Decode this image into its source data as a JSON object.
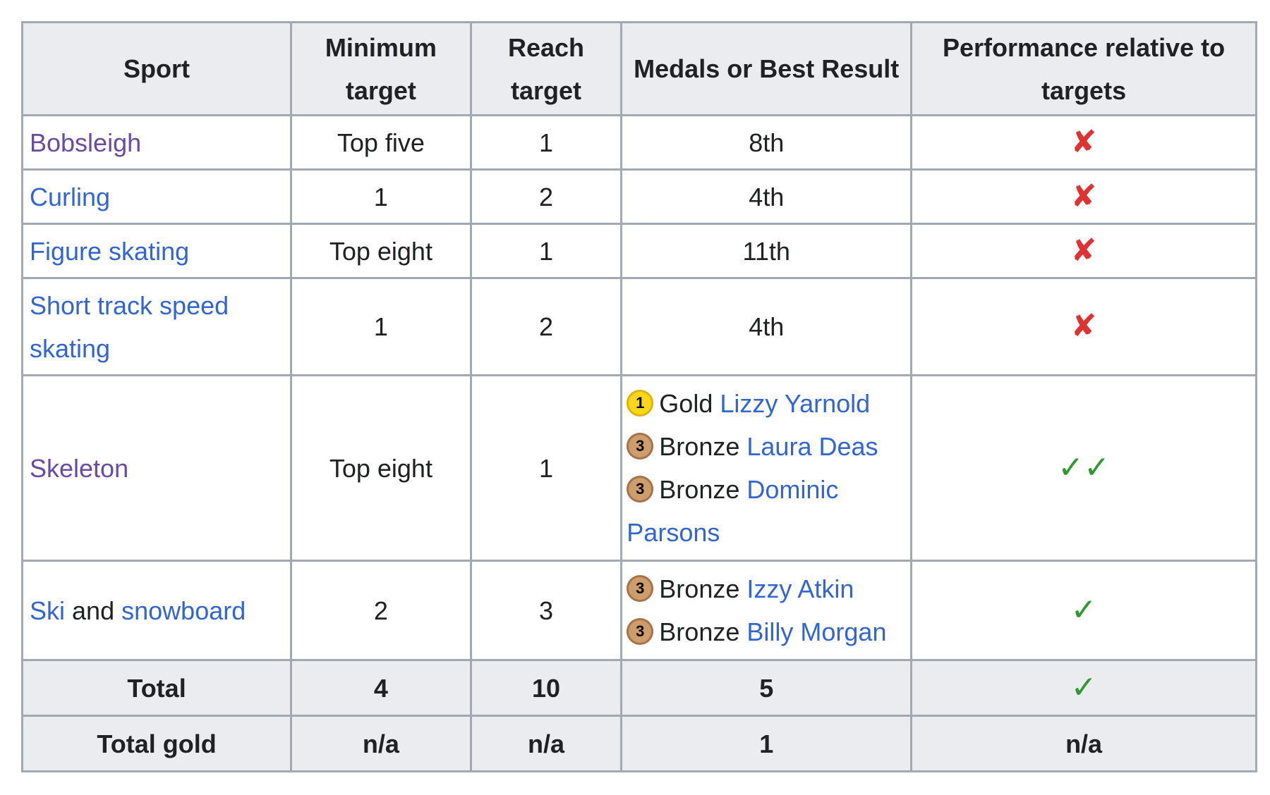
{
  "headers": {
    "sport": "Sport",
    "minimum": "Minimum target",
    "reach": "Reach target",
    "medals": "Medals or Best Result",
    "performance": "Performance relative to targets"
  },
  "rows": [
    {
      "sport": "Bobsleigh",
      "minimum": "Top five",
      "reach": "1",
      "result": "8th",
      "performance": "✘"
    },
    {
      "sport": "Curling",
      "minimum": "1",
      "reach": "2",
      "result": "4th",
      "performance": "✘"
    },
    {
      "sport": "Figure skating",
      "minimum": "Top eight",
      "reach": "1",
      "result": "11th",
      "performance": "✘"
    },
    {
      "sport": "Short track speed skating",
      "minimum": "1",
      "reach": "2",
      "result": "4th",
      "performance": "✘"
    },
    {
      "sport": "Skeleton",
      "minimum": "Top eight",
      "reach": "1",
      "performance": "✓✓",
      "medals": [
        {
          "rank": "1",
          "type": "Gold",
          "athlete": "Lizzy Yarnold"
        },
        {
          "rank": "3",
          "type": "Bronze",
          "athlete": "Laura Deas"
        },
        {
          "rank": "3",
          "type": "Bronze",
          "athlete": "Dominic Parsons"
        }
      ]
    },
    {
      "sport_parts": [
        "Ski",
        "and",
        "snowboard"
      ],
      "minimum": "2",
      "reach": "3",
      "performance": "✓",
      "medals": [
        {
          "rank": "3",
          "type": "Bronze",
          "athlete": "Izzy Atkin"
        },
        {
          "rank": "3",
          "type": "Bronze",
          "athlete": "Billy Morgan"
        }
      ]
    }
  ],
  "totals": [
    {
      "label": "Total",
      "minimum": "4",
      "reach": "10",
      "result": "5",
      "performance": "✓"
    },
    {
      "label": "Total gold",
      "minimum": "n/a",
      "reach": "n/a",
      "result": "1",
      "performance": "n/a"
    }
  ],
  "colors": {
    "link": "#3366cc",
    "visited_link": "#6b4ba1",
    "cross": "#dd3333",
    "check": "#2e9a2e",
    "header_bg": "#eaecf0",
    "border": "#a2a9b1"
  }
}
